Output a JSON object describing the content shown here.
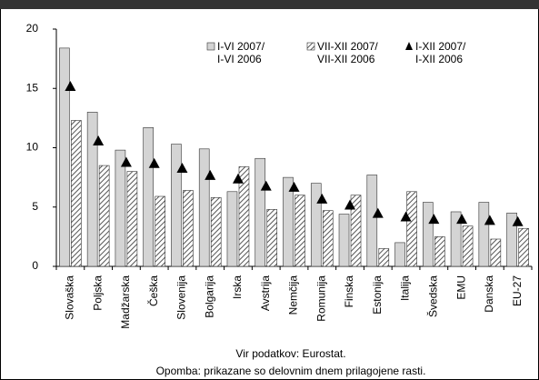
{
  "chart_data": {
    "type": "bar",
    "categories": [
      "Slovaška",
      "Poljska",
      "Madžarska",
      "Češka",
      "Slovenija",
      "Bolgarija",
      "Irska",
      "Avstrija",
      "Nemčija",
      "Romunija",
      "Finska",
      "Estonija",
      "Italija",
      "Švedska",
      "EMU",
      "Danska",
      "EU-27"
    ],
    "series": [
      {
        "name": "I-VI 2007/\nI-VI 2006",
        "color": "#d4d4d4",
        "style": "bar",
        "values": [
          18.4,
          13.0,
          9.8,
          11.7,
          10.3,
          9.9,
          6.3,
          9.1,
          7.5,
          7.0,
          4.4,
          7.7,
          2.0,
          5.4,
          4.6,
          5.4,
          4.5
        ]
      },
      {
        "name": "VII-XII 2007/\nVII-XII 2006",
        "color": "#555555",
        "style": "hatched",
        "values": [
          12.3,
          8.5,
          8.0,
          5.9,
          6.4,
          5.8,
          8.4,
          4.8,
          6.0,
          4.7,
          6.0,
          1.5,
          6.3,
          2.5,
          3.4,
          2.3,
          3.2
        ]
      },
      {
        "name": "I-XII 2007/\nI-XII 2006",
        "color": "#000000",
        "style": "triangle",
        "values": [
          15.1,
          10.5,
          8.7,
          8.6,
          8.2,
          7.6,
          7.3,
          6.7,
          6.6,
          5.6,
          5.1,
          4.4,
          4.1,
          3.9,
          3.9,
          3.8,
          3.7
        ]
      }
    ],
    "ylim": [
      0,
      20
    ],
    "yticks": [
      0,
      5,
      10,
      15,
      20
    ],
    "notes": [
      "Vir podatkov: Eurostat.",
      "Opomba: prikazane so delovnim dnem prilagojene rasti."
    ]
  }
}
